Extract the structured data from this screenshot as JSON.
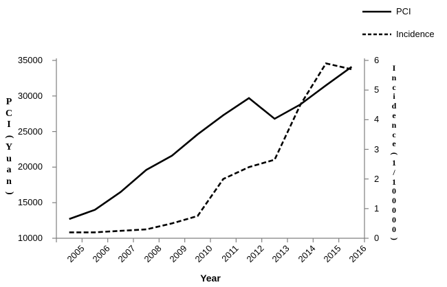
{
  "legend": {
    "items": [
      {
        "label": "PCI",
        "line_style": "solid"
      },
      {
        "label": "Incidence",
        "line_style": "dashed"
      }
    ]
  },
  "chart_data": {
    "type": "line",
    "categories": [
      "2005",
      "2006",
      "2007",
      "2008",
      "2009",
      "2010",
      "2011",
      "2012",
      "2013",
      "2014",
      "2015",
      "2016"
    ],
    "series": [
      {
        "name": "PCI",
        "axis": "left",
        "line_style": "solid",
        "values": [
          12700,
          14000,
          16500,
          19600,
          21600,
          24600,
          27300,
          29700,
          26800,
          28800,
          31500,
          34100
        ]
      },
      {
        "name": "Incidence",
        "axis": "right",
        "line_style": "dashed",
        "values": [
          0.2,
          0.2,
          0.25,
          0.3,
          0.5,
          0.75,
          2.0,
          2.4,
          2.65,
          4.5,
          5.9,
          5.7
        ]
      }
    ],
    "x_axis": {
      "label": "Year"
    },
    "left_axis": {
      "label": "PCI(Yuan)",
      "ticks": [
        10000,
        15000,
        20000,
        25000,
        30000,
        35000
      ],
      "range": [
        10000,
        35000
      ]
    },
    "right_axis": {
      "label": "Incidence(1/100000)",
      "ticks": [
        0,
        1,
        2,
        3,
        4,
        5,
        6
      ],
      "range": [
        0,
        6
      ]
    },
    "legend_position": "top-right",
    "grid": false,
    "colors": {
      "series": "#000000",
      "axis": "#7f7f7f",
      "text": "#000000"
    }
  }
}
